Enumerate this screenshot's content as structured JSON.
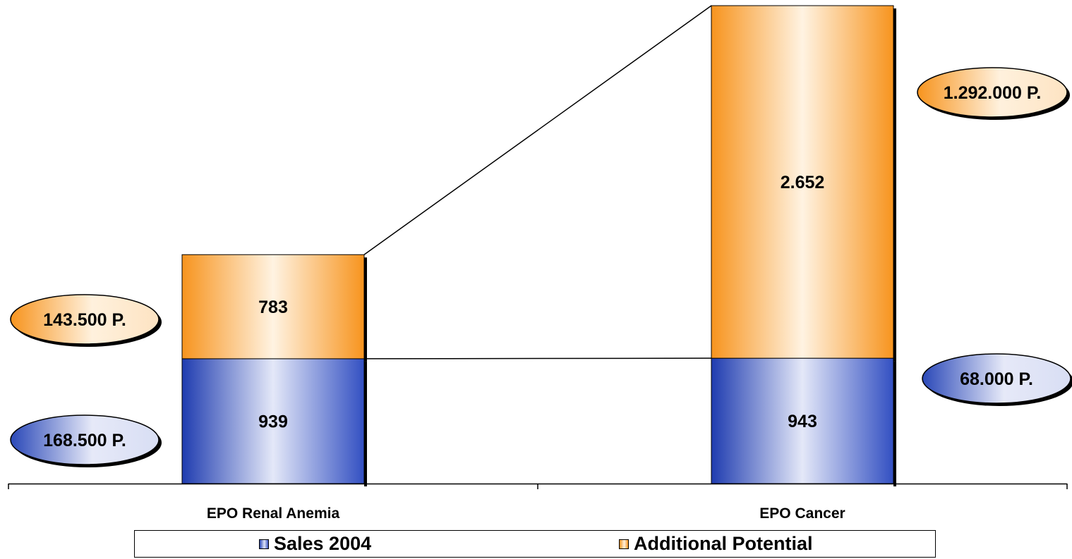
{
  "chart_data": {
    "type": "bar",
    "stacked": true,
    "categories": [
      "EPO Renal Anemia",
      "EPO Cancer"
    ],
    "series": [
      {
        "name": "Sales 2004",
        "values": [
          939,
          943
        ],
        "color": "#2a48b8"
      },
      {
        "name": "Additional Potential",
        "values": [
          783,
          2652
        ],
        "color": "#f7941e"
      }
    ],
    "data_labels": {
      "EPO Renal Anemia": [
        "939",
        "783"
      ],
      "EPO Cancer": [
        "943",
        "2.652"
      ]
    },
    "annotations": [
      {
        "text": "168.500 P.",
        "category": "EPO Renal Anemia",
        "series": "Sales 2004",
        "side": "left"
      },
      {
        "text": "143.500 P.",
        "category": "EPO Renal Anemia",
        "series": "Additional Potential",
        "side": "left"
      },
      {
        "text": "68.000 P.",
        "category": "EPO Cancer",
        "series": "Sales 2004",
        "side": "right"
      },
      {
        "text": "1.292.000 P.",
        "category": "EPO Cancer",
        "series": "Additional Potential",
        "side": "right"
      }
    ],
    "connector_lines": true,
    "title": "",
    "xlabel": "",
    "ylabel": "",
    "ylim": [
      0,
      3595
    ],
    "grid": false,
    "y_axis_visible": false,
    "legend_placement": "bottom"
  }
}
